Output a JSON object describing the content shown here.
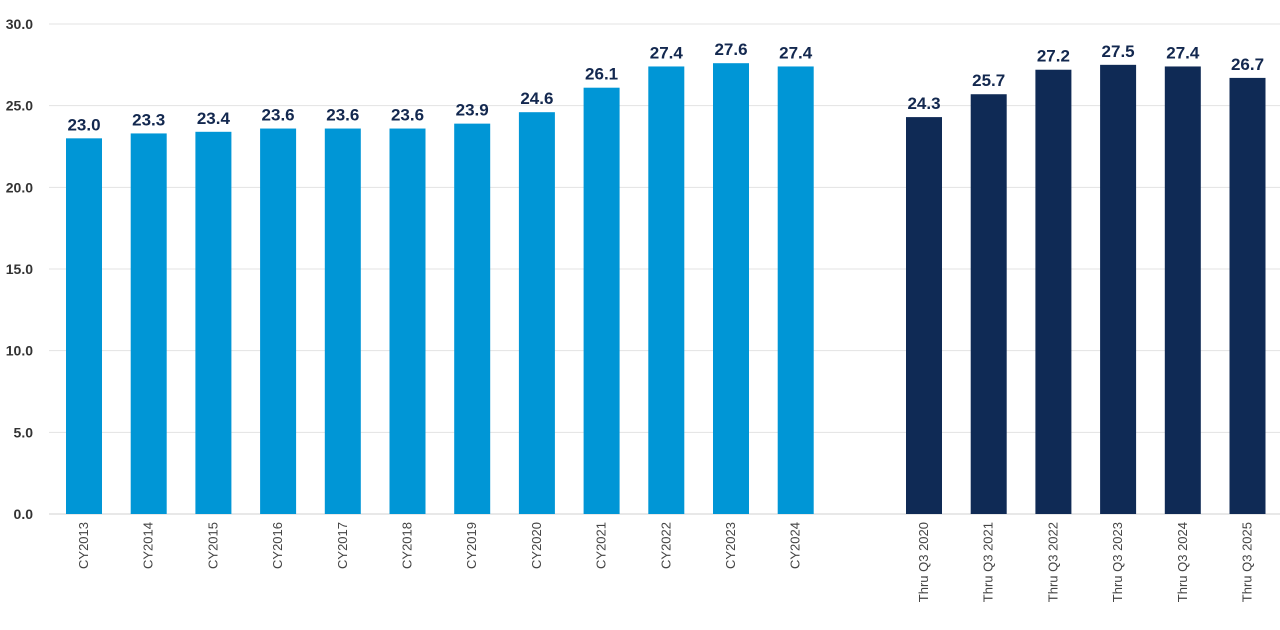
{
  "chart_data": {
    "type": "bar",
    "title": "",
    "xlabel": "",
    "ylabel": "",
    "ylim": [
      0,
      30
    ],
    "yticks": [
      "0.0",
      "5.0",
      "10.0",
      "15.0",
      "20.0",
      "25.0",
      "30.0"
    ],
    "grid": true,
    "legend": "none",
    "groups": [
      {
        "color": "#0096d6",
        "categories": [
          "CY2013",
          "CY2014",
          "CY2015",
          "CY2016",
          "CY2017",
          "CY2018",
          "CY2019",
          "CY2020",
          "CY2021",
          "CY2022",
          "CY2023",
          "CY2024"
        ],
        "values": [
          23.0,
          23.3,
          23.4,
          23.6,
          23.6,
          23.6,
          23.9,
          24.6,
          26.1,
          27.4,
          27.6,
          27.4
        ],
        "labels": [
          "23.0",
          "23.3",
          "23.4",
          "23.6",
          "23.6",
          "23.6",
          "23.9",
          "24.6",
          "26.1",
          "27.4",
          "27.6",
          "27.4"
        ]
      },
      {
        "color": "#0f2a55",
        "categories": [
          "Thru Q3 2020",
          "Thru Q3 2021",
          "Thru Q3 2022",
          "Thru Q3 2023",
          "Thru Q3 2024",
          "Thru Q3 2025"
        ],
        "values": [
          24.3,
          25.7,
          27.2,
          27.5,
          27.4,
          26.7
        ],
        "labels": [
          "24.3",
          "25.7",
          "27.2",
          "27.5",
          "27.4",
          "26.7"
        ]
      }
    ]
  }
}
